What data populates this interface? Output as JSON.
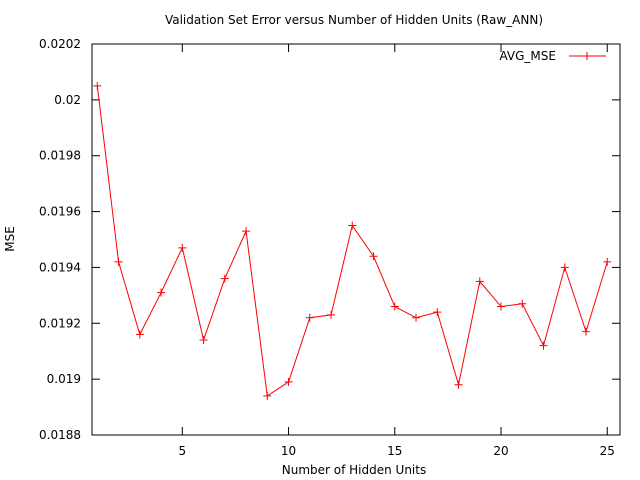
{
  "chart_data": {
    "type": "line",
    "title": "Validation Set Error versus Number of Hidden Units (Raw_ANN)",
    "xlabel": "Number of Hidden Units",
    "ylabel": "MSE",
    "xlim": [
      0.75,
      25.6
    ],
    "ylim": [
      0.0188,
      0.0202
    ],
    "xticks": [
      5,
      10,
      15,
      20,
      25
    ],
    "yticks": [
      0.0188,
      0.019,
      0.0192,
      0.0194,
      0.0196,
      0.0198,
      0.02,
      0.0202
    ],
    "ytick_labels": [
      "0.0188",
      "0.019",
      "0.0192",
      "0.0194",
      "0.0196",
      "0.0198",
      "0.02",
      "0.0202"
    ],
    "grid": false,
    "legend_position": "top-right",
    "series": [
      {
        "name": "AVG_MSE",
        "color": "#ff0000",
        "marker": "plus",
        "x": [
          1,
          2,
          3,
          4,
          5,
          6,
          7,
          8,
          9,
          10,
          11,
          12,
          13,
          14,
          15,
          16,
          17,
          18,
          19,
          20,
          21,
          22,
          23,
          24,
          25
        ],
        "y": [
          0.02005,
          0.01942,
          0.01916,
          0.01931,
          0.01947,
          0.01914,
          0.01936,
          0.01953,
          0.01894,
          0.01899,
          0.01922,
          0.01923,
          0.01955,
          0.01944,
          0.01926,
          0.01922,
          0.01924,
          0.01898,
          0.01935,
          0.01926,
          0.01927,
          0.01912,
          0.0194,
          0.01917,
          0.01942
        ]
      }
    ]
  }
}
